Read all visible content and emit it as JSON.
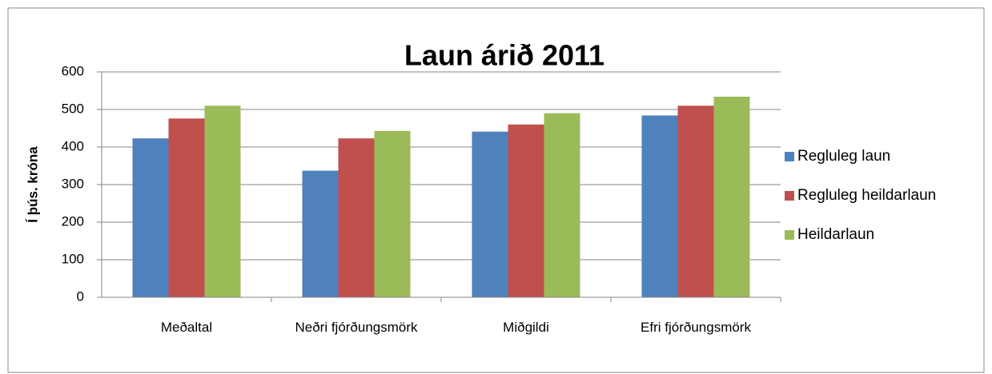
{
  "chart_data": {
    "type": "bar",
    "title": "Laun árið 2011",
    "y_label": "Í þús. króna",
    "categories": [
      "Meðaltal",
      "Neðri fjórðungsmörk",
      "Miðgildi",
      "Efri fjórðungsmörk"
    ],
    "series": [
      {
        "name": "Regluleg laun",
        "color": "#4f81bd",
        "values": [
          423,
          337,
          441,
          484
        ]
      },
      {
        "name": "Regluleg heildarlaun",
        "color": "#c0504d",
        "values": [
          476,
          423,
          460,
          510
        ]
      },
      {
        "name": "Heildarlaun",
        "color": "#9bbb59",
        "values": [
          510,
          443,
          490,
          534
        ]
      }
    ],
    "ylim": [
      0,
      600
    ],
    "yticks": [
      0,
      100,
      200,
      300,
      400,
      500,
      600
    ],
    "grid": true,
    "legend": "right"
  }
}
